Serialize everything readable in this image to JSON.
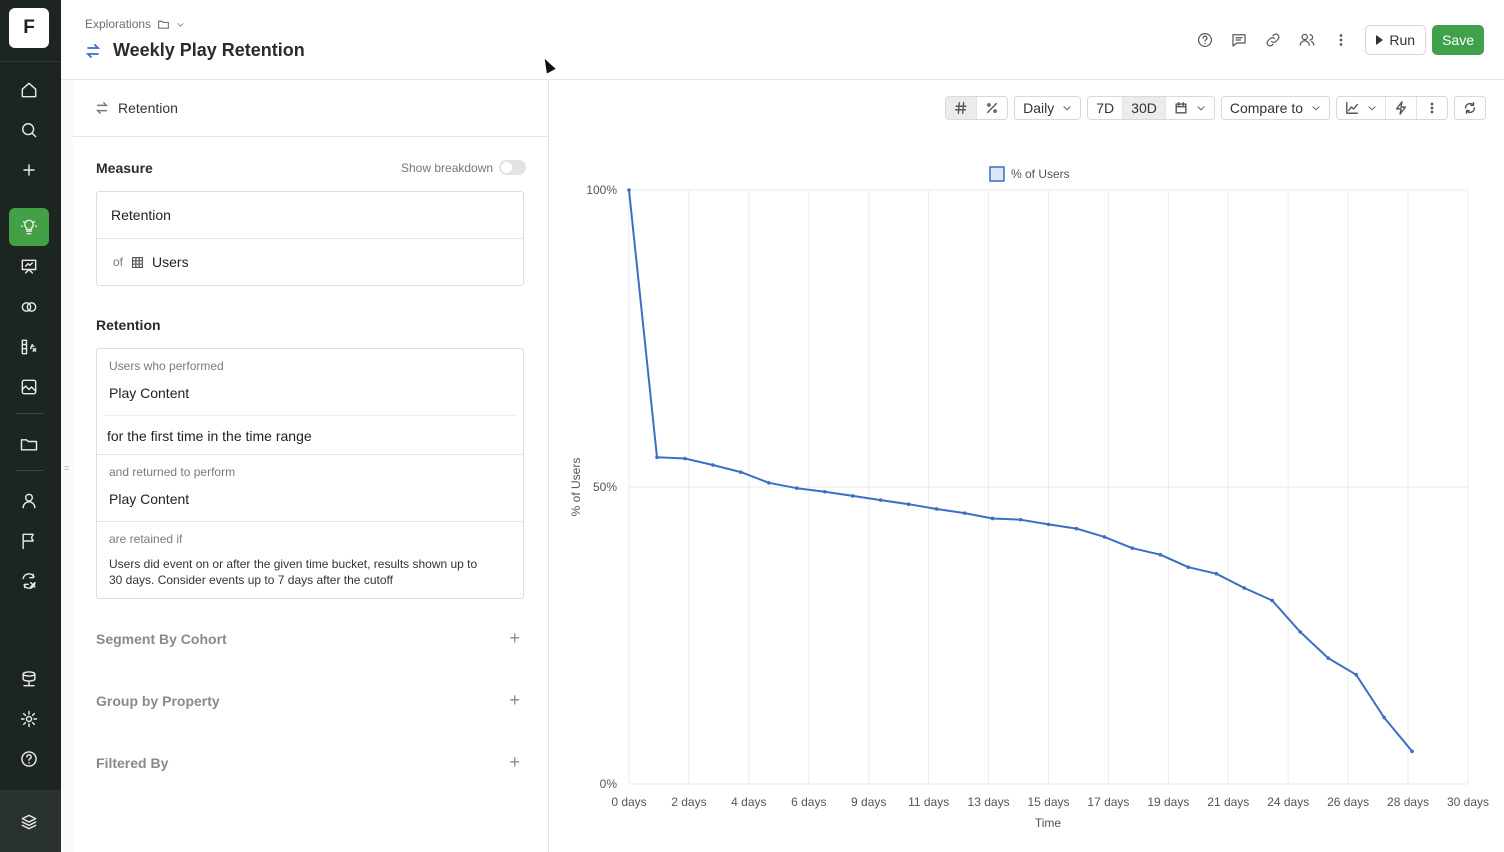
{
  "rail": {
    "logo": "F",
    "items": [
      {
        "name": "home-icon"
      },
      {
        "name": "search-icon"
      },
      {
        "name": "plus-icon"
      },
      {
        "name": "explorations-icon",
        "active": true
      },
      {
        "name": "presentation-icon"
      },
      {
        "name": "overlap-icon"
      },
      {
        "name": "formula-icon"
      },
      {
        "name": "image-icon"
      },
      {
        "name": "folder-icon"
      },
      {
        "name": "user-icon"
      },
      {
        "name": "flag-icon"
      },
      {
        "name": "sync-icon"
      },
      {
        "name": "database-icon"
      },
      {
        "name": "gear-icon"
      },
      {
        "name": "help-icon"
      },
      {
        "name": "layers-icon"
      }
    ]
  },
  "header": {
    "breadcrumb": "Explorations",
    "title": "Weekly Play Retention",
    "run_label": "Run",
    "save_label": "Save"
  },
  "panel": {
    "top_label": "Retention",
    "measure_title": "Measure",
    "show_breakdown": "Show breakdown",
    "measure_metric": "Retention",
    "measure_of": "of",
    "measure_entity": "Users",
    "retention_title": "Retention",
    "performed_label": "Users who performed",
    "performed_event": "Play Content",
    "first_time": "for the first time in the time range",
    "returned_label": "and returned to perform",
    "returned_event": "Play Content",
    "retained_label": "are retained if",
    "retained_desc": "Users did event on or after the given time bucket, results shown up to 30 days. Consider events up to 7 days after the cutoff",
    "segment_by_cohort": "Segment By Cohort",
    "group_by_property": "Group by Property",
    "filtered_by": "Filtered By"
  },
  "toolbar": {
    "granularity": "Daily",
    "range_7d": "7D",
    "range_30d": "30D",
    "compare_to": "Compare to"
  },
  "colors": {
    "accent_green": "#43a047",
    "save_green": "#3fa14a",
    "line_blue": "#3a6fc4"
  },
  "chart_data": {
    "type": "line",
    "legend": "% of Users",
    "ylabel": "% of Users",
    "xlabel": "Time",
    "ylim": [
      0,
      100
    ],
    "yticks": [
      "0%",
      "50%",
      "100%"
    ],
    "xlim": [
      0,
      28
    ],
    "xtick_labels": [
      "0 days",
      "2 days",
      "4 days",
      "6 days",
      "9 days",
      "11 days",
      "13 days",
      "15 days",
      "17 days",
      "19 days",
      "21 days",
      "24 days",
      "26 days",
      "28 days",
      "30 days"
    ],
    "series": [
      {
        "name": "% of Users",
        "x": [
          0,
          1,
          2,
          3,
          4,
          5,
          6,
          7,
          8,
          9,
          10,
          11,
          12,
          13,
          14,
          15,
          16,
          17,
          18,
          19,
          20,
          21,
          22,
          23,
          24,
          25,
          26,
          27,
          28
        ],
        "values": [
          100,
          55,
          54.8,
          53.7,
          52.5,
          50.7,
          49.8,
          49.2,
          48.5,
          47.8,
          47.1,
          46.3,
          45.6,
          44.7,
          44.5,
          43.7,
          43.0,
          41.6,
          39.7,
          38.6,
          36.5,
          35.4,
          33.0,
          30.9,
          25.6,
          21.2,
          18.4,
          11.2,
          5.5
        ]
      }
    ]
  }
}
